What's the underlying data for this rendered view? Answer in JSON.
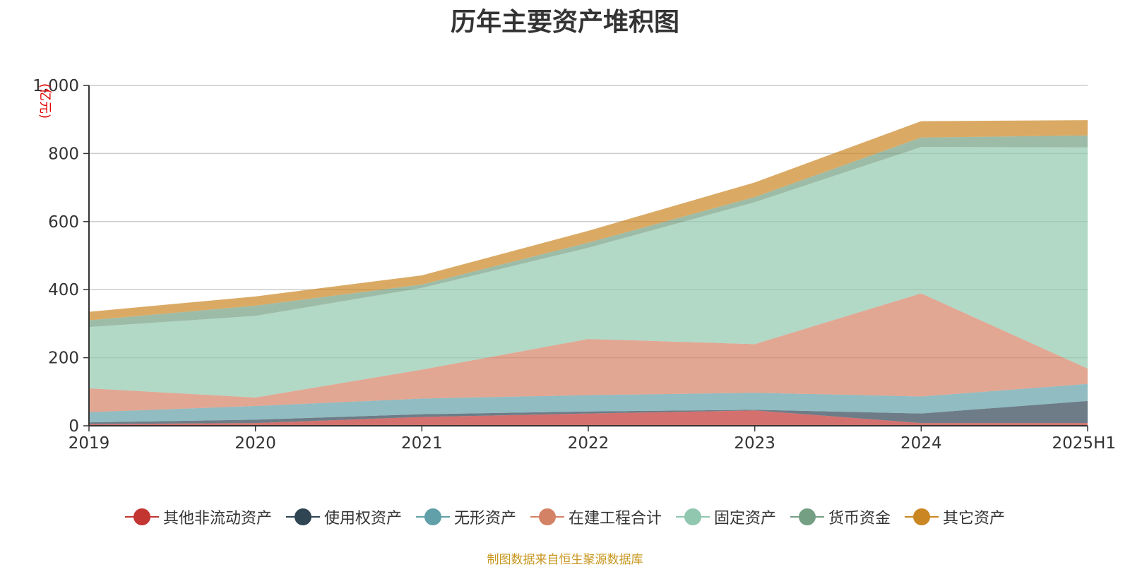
{
  "chart_data": {
    "type": "area",
    "stacked": true,
    "title": "历年主要资产堆积图",
    "ylabel": "(亿元)",
    "xlabel": "",
    "categories": [
      "2019",
      "2020",
      "2021",
      "2022",
      "2023",
      "2024",
      "2025H1"
    ],
    "ylim": [
      0,
      1000
    ],
    "yticks": [
      0,
      200,
      400,
      600,
      800,
      1000
    ],
    "ytick_labels": [
      "0",
      "200",
      "400",
      "600",
      "800",
      "1,000"
    ],
    "grid": true,
    "legend_position": "bottom",
    "series": [
      {
        "name": "其他非流动资产",
        "color": "#c23531",
        "values": [
          5,
          8,
          26,
          36,
          45,
          8,
          8
        ]
      },
      {
        "name": "使用权资产",
        "color": "#2f4554",
        "values": [
          5,
          10,
          8,
          6,
          2,
          28,
          65
        ]
      },
      {
        "name": "无形资产",
        "color": "#61a0a8",
        "values": [
          30,
          40,
          46,
          48,
          50,
          50,
          50
        ]
      },
      {
        "name": "在建工程合计",
        "color": "#d48265",
        "values": [
          70,
          25,
          85,
          165,
          143,
          303,
          45
        ]
      },
      {
        "name": "固定资产",
        "color": "#91c7ae",
        "values": [
          180,
          240,
          240,
          268,
          417,
          430,
          650
        ]
      },
      {
        "name": "货币资金",
        "color": "#749f83",
        "values": [
          20,
          30,
          10,
          15,
          15,
          28,
          35
        ]
      },
      {
        "name": "其它资产",
        "color": "#ca8622",
        "values": [
          25,
          27,
          27,
          35,
          43,
          48,
          45
        ]
      }
    ]
  },
  "source_note": "制图数据来自恒生聚源数据库"
}
